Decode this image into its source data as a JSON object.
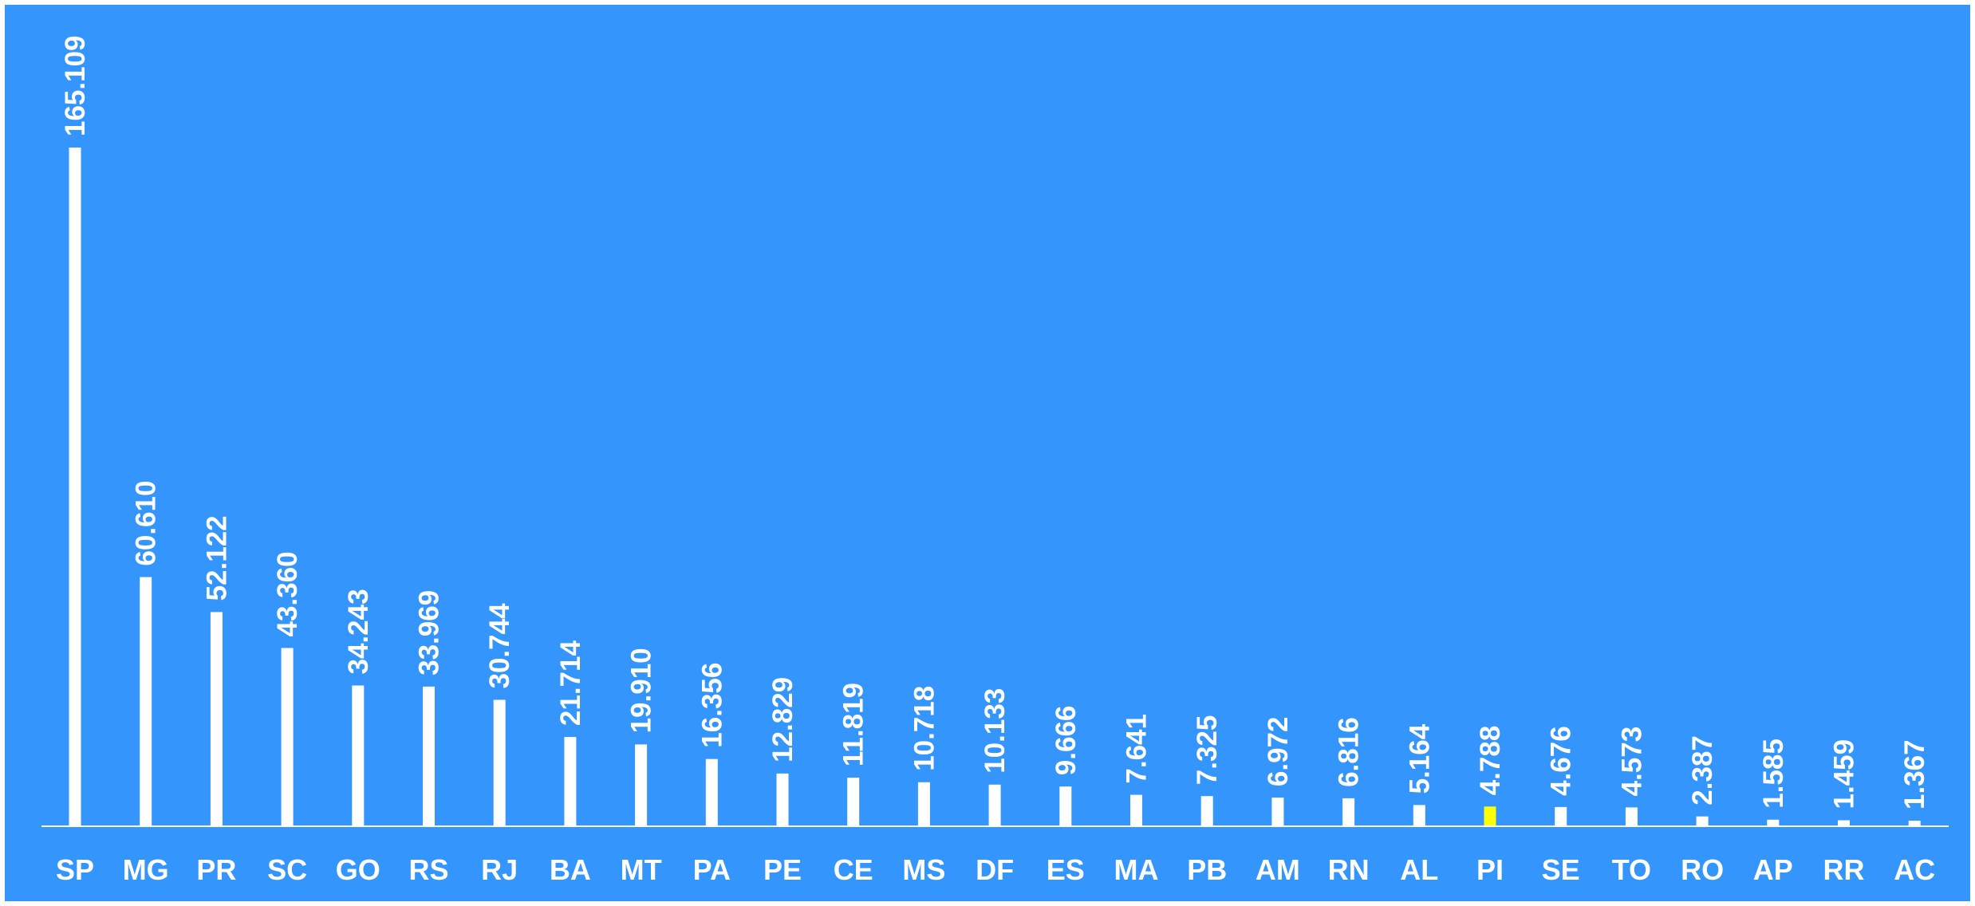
{
  "chart_data": {
    "type": "bar",
    "categories": [
      "SP",
      "MG",
      "PR",
      "SC",
      "GO",
      "RS",
      "RJ",
      "BA",
      "MT",
      "PA",
      "PE",
      "CE",
      "MS",
      "DF",
      "ES",
      "MA",
      "PB",
      "AM",
      "RN",
      "AL",
      "PI",
      "SE",
      "TO",
      "RO",
      "AP",
      "RR",
      "AC"
    ],
    "values": [
      165109,
      60610,
      52122,
      43360,
      34243,
      33969,
      30744,
      21714,
      19910,
      16356,
      12829,
      11819,
      10718,
      10133,
      9666,
      7641,
      7325,
      6972,
      6816,
      5164,
      4788,
      4676,
      4573,
      2387,
      1585,
      1459,
      1367
    ],
    "value_labels": [
      "165.109",
      "60.610",
      "52.122",
      "43.360",
      "34.243",
      "33.969",
      "30.744",
      "21.714",
      "19.910",
      "16.356",
      "12.829",
      "11.819",
      "10.718",
      "10.133",
      "9.666",
      "7.641",
      "7.325",
      "6.972",
      "6.816",
      "5.164",
      "4.788",
      "4.676",
      "4.573",
      "2.387",
      "1.585",
      "1.459",
      "1.367"
    ],
    "title": "",
    "xlabel": "",
    "ylabel": "",
    "ylim": [
      0,
      200000
    ],
    "grid": false,
    "legend": "none",
    "colors": {
      "background": "#3495FD",
      "bar": "#FFFFFF",
      "highlight_bar": "#FFFF00",
      "text": "#FFFFFF",
      "axis": "#FFFFFF"
    },
    "highlight_category": "PI"
  }
}
